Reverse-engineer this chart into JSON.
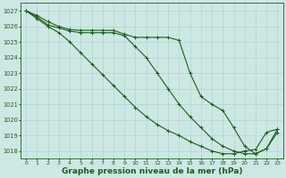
{
  "background_color": "#cde8e4",
  "grid_color": "#b0d4d0",
  "line_color": "#1a5c1a",
  "xlabel": "Graphe pression niveau de la mer (hPa)",
  "xlabel_fontsize": 6.5,
  "ylim": [
    1017.5,
    1027.5
  ],
  "xlim": [
    -0.5,
    23.5
  ],
  "yticks": [
    1018,
    1019,
    1020,
    1021,
    1022,
    1023,
    1024,
    1025,
    1026,
    1027
  ],
  "xticks": [
    0,
    1,
    2,
    3,
    4,
    5,
    6,
    7,
    8,
    9,
    10,
    11,
    12,
    13,
    14,
    15,
    16,
    17,
    18,
    19,
    20,
    21,
    22,
    23
  ],
  "series": [
    {
      "x": [
        0,
        1,
        2,
        3,
        4,
        5,
        6,
        7,
        8,
        9,
        10,
        11,
        12,
        13,
        14,
        15,
        16,
        17,
        18,
        19,
        20,
        21,
        22,
        23
      ],
      "y": [
        1027.0,
        1026.7,
        1026.3,
        1026.0,
        1025.8,
        1025.75,
        1025.75,
        1025.75,
        1025.75,
        1025.5,
        1025.3,
        1025.3,
        1025.3,
        1025.3,
        1025.1,
        1023.0,
        1021.5,
        1021.0,
        1020.6,
        1019.5,
        1018.3,
        1017.82,
        1018.15,
        1019.2
      ]
    },
    {
      "x": [
        0,
        1,
        2,
        3,
        4,
        5,
        6,
        7,
        8,
        9,
        10,
        11,
        12,
        13,
        14,
        15,
        16,
        17,
        18,
        19,
        20,
        21,
        22,
        23
      ],
      "y": [
        1027.0,
        1026.6,
        1026.1,
        1025.9,
        1025.7,
        1025.6,
        1025.6,
        1025.6,
        1025.6,
        1025.4,
        1024.7,
        1024.0,
        1023.0,
        1022.0,
        1021.0,
        1020.2,
        1019.5,
        1018.8,
        1018.3,
        1018.0,
        1017.82,
        1017.82,
        1018.15,
        1019.4
      ]
    },
    {
      "x": [
        0,
        1,
        2,
        3,
        4,
        5,
        6,
        7,
        8,
        9,
        10,
        11,
        12,
        13,
        14,
        15,
        16,
        17,
        18,
        19,
        20,
        21,
        22,
        23
      ],
      "y": [
        1027.0,
        1026.5,
        1026.0,
        1025.6,
        1025.0,
        1024.3,
        1023.6,
        1022.9,
        1022.2,
        1021.5,
        1020.8,
        1020.2,
        1019.7,
        1019.3,
        1019.0,
        1018.6,
        1018.3,
        1018.0,
        1017.82,
        1017.82,
        1018.0,
        1018.1,
        1019.2,
        1019.4
      ]
    }
  ]
}
